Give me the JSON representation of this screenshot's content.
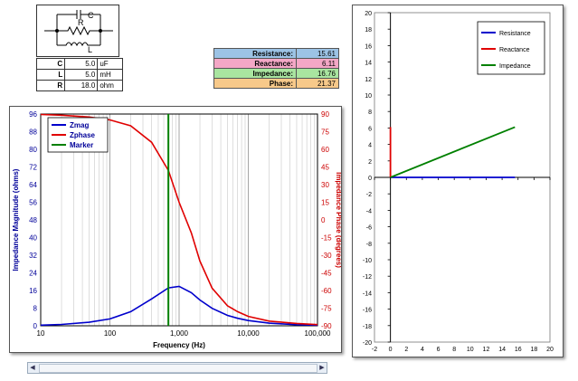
{
  "schematic": {
    "labels": [
      "C",
      "R",
      "L"
    ]
  },
  "params": [
    {
      "name": "C",
      "value": "5.0",
      "unit": "uF"
    },
    {
      "name": "L",
      "value": "5.0",
      "unit": "mH"
    },
    {
      "name": "R",
      "value": "18.0",
      "unit": "ohm"
    }
  ],
  "results": [
    {
      "label": "Resistance:",
      "value": "15.61",
      "color": "#9cc3e5"
    },
    {
      "label": "Reactance:",
      "value": "6.11",
      "color": "#f4a7c6"
    },
    {
      "label": "Impedance:",
      "value": "16.76",
      "color": "#a9e5a0"
    },
    {
      "label": "Phase:",
      "value": "21.37",
      "color": "#f7c98a"
    }
  ],
  "chart_data": [
    {
      "type": "line",
      "xscale": "log",
      "xlabel": "Frequency (Hz)",
      "ylabel": "Impedance Magnitude (ohms)",
      "y2label": "Impedance Phase (degrees)",
      "xlim": [
        10,
        100000
      ],
      "ylim": [
        0,
        96
      ],
      "y2lim": [
        -90,
        90
      ],
      "xticks": [
        10,
        100,
        1000,
        10000,
        100000
      ],
      "xtick_labels": [
        "10",
        "100",
        "1,000",
        "10,000",
        "100,000"
      ],
      "yticks": [
        0,
        8,
        16,
        24,
        32,
        40,
        48,
        56,
        64,
        72,
        80,
        88,
        96
      ],
      "y2ticks": [
        -90,
        -75,
        -60,
        -45,
        -30,
        -15,
        0,
        15,
        30,
        45,
        60,
        75,
        90
      ],
      "legend": {
        "placement": "top-left",
        "entries": [
          "Zmag",
          "Zphase",
          "Marker"
        ]
      },
      "colors": {
        "Zmag": "#0000cc",
        "Zphase": "#e00000",
        "Marker": "#008000"
      },
      "x": [
        10,
        20,
        50,
        100,
        200,
        400,
        700,
        1000,
        1500,
        2000,
        3000,
        5000,
        7000,
        10000,
        20000,
        50000,
        100000
      ],
      "series": [
        {
          "name": "Zmag",
          "axis": "left",
          "values": [
            0.3,
            0.6,
            1.6,
            3.1,
            6.4,
            12.2,
            17.2,
            17.9,
            15.0,
            11.7,
            7.9,
            4.7,
            3.4,
            2.4,
            1.2,
            0.5,
            0.3
          ]
        },
        {
          "name": "Zphase",
          "axis": "right",
          "values": [
            89.6,
            89,
            87.5,
            85,
            80,
            66,
            42,
            15,
            -11,
            -35,
            -58,
            -73,
            -78,
            -82,
            -86,
            -88,
            -89
          ]
        },
        {
          "name": "Marker",
          "axis": "left",
          "type": "vline",
          "x_value": 700
        }
      ]
    },
    {
      "type": "line",
      "xlim": [
        -2,
        20
      ],
      "ylim": [
        -20,
        20
      ],
      "xticks": [
        -2,
        0,
        2,
        4,
        6,
        8,
        10,
        12,
        14,
        16,
        18,
        20
      ],
      "yticks": [
        -20,
        -18,
        -16,
        -14,
        -12,
        -10,
        -8,
        -6,
        -4,
        -2,
        0,
        2,
        4,
        6,
        8,
        10,
        12,
        14,
        16,
        18,
        20
      ],
      "legend": {
        "placement": "top-right",
        "entries": [
          "Resistance",
          "Reactance",
          "Impedance"
        ]
      },
      "colors": {
        "Resistance": "#0000cc",
        "Reactance": "#e00000",
        "Impedance": "#008000"
      },
      "series": [
        {
          "name": "Resistance",
          "points": [
            [
              0,
              0
            ],
            [
              15.61,
              0
            ]
          ]
        },
        {
          "name": "Reactance",
          "points": [
            [
              0,
              0
            ],
            [
              0,
              6.11
            ]
          ]
        },
        {
          "name": "Impedance",
          "points": [
            [
              0,
              0
            ],
            [
              15.61,
              6.11
            ]
          ]
        }
      ]
    }
  ]
}
